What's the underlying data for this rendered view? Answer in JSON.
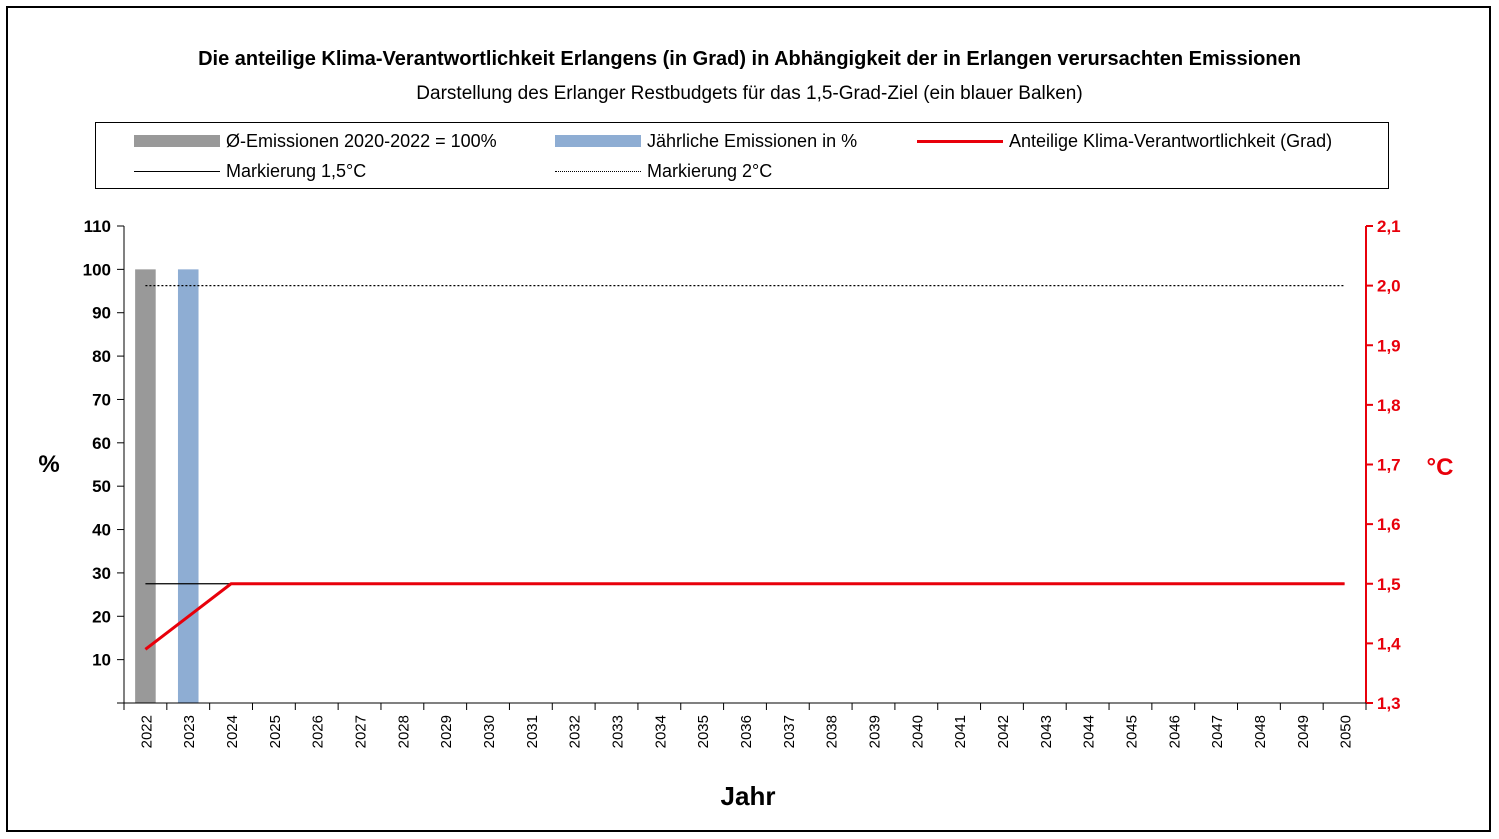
{
  "chart_data": {
    "type": "bar",
    "title": "Die anteilige Klima-Verantwortlichkeit Erlangens (in Grad) in Abhängigkeit der in Erlangen verursachten Emissionen",
    "subtitle": "Darstellung des Erlanger Restbudgets für das 1,5-Grad-Ziel (ein blauer Balken)",
    "xlabel": "Jahr",
    "ylabel": "%",
    "y2label": "°C",
    "categories": [
      "2022",
      "2023",
      "2024",
      "2025",
      "2026",
      "2027",
      "2028",
      "2029",
      "2030",
      "2031",
      "2032",
      "2033",
      "2034",
      "2035",
      "2036",
      "2037",
      "2038",
      "2039",
      "2040",
      "2041",
      "2042",
      "2043",
      "2044",
      "2045",
      "2046",
      "2047",
      "2048",
      "2049",
      "2050"
    ],
    "ylim": [
      0,
      110
    ],
    "yticks": [
      10,
      20,
      30,
      40,
      50,
      60,
      70,
      80,
      90,
      100,
      110
    ],
    "y2lim": [
      1.3,
      2.1
    ],
    "y2ticks": [
      "1,3",
      "1,4",
      "1,5",
      "1,6",
      "1,7",
      "1,8",
      "1,9",
      "2,0",
      "2,1"
    ],
    "series": [
      {
        "name": "Ø-Emissionen 2020-2022 = 100%",
        "kind": "bar",
        "axis": "left",
        "color": "#999999",
        "values": [
          100,
          null,
          null,
          null,
          null,
          null,
          null,
          null,
          null,
          null,
          null,
          null,
          null,
          null,
          null,
          null,
          null,
          null,
          null,
          null,
          null,
          null,
          null,
          null,
          null,
          null,
          null,
          null,
          null
        ]
      },
      {
        "name": "Jährliche Emissionen in %",
        "kind": "bar",
        "axis": "left",
        "color": "#8eadd3",
        "values": [
          null,
          100,
          null,
          null,
          null,
          null,
          null,
          null,
          null,
          null,
          null,
          null,
          null,
          null,
          null,
          null,
          null,
          null,
          null,
          null,
          null,
          null,
          null,
          null,
          null,
          null,
          null,
          null,
          null
        ]
      },
      {
        "name": "Anteilige Klima-Verantwortlichkeit (Grad)",
        "kind": "line",
        "axis": "right",
        "color": "#e8000b",
        "values": [
          1.39,
          1.445,
          1.5,
          1.5,
          1.5,
          1.5,
          1.5,
          1.5,
          1.5,
          1.5,
          1.5,
          1.5,
          1.5,
          1.5,
          1.5,
          1.5,
          1.5,
          1.5,
          1.5,
          1.5,
          1.5,
          1.5,
          1.5,
          1.5,
          1.5,
          1.5,
          1.5,
          1.5,
          1.5
        ]
      },
      {
        "name": "Markierung 1,5°C",
        "kind": "hline",
        "axis": "right",
        "color": "#000000",
        "value": 1.5
      },
      {
        "name": "Markierung 2°C",
        "kind": "hline-dotted",
        "axis": "right",
        "color": "#000000",
        "value": 2.0
      }
    ],
    "legend_position": "top",
    "grid": false
  }
}
